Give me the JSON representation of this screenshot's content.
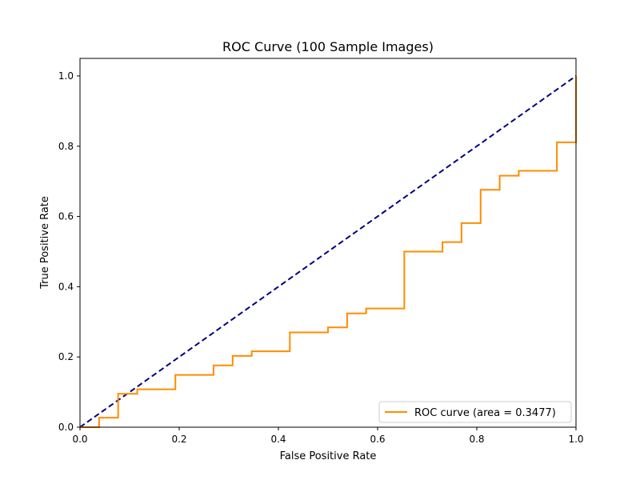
{
  "chart_data": {
    "type": "line",
    "title": "ROC Curve (100 Sample Images)",
    "xlabel": "False Positive Rate",
    "ylabel": "True Positive Rate",
    "xlim": [
      0.0,
      1.0
    ],
    "ylim": [
      0.0,
      1.05
    ],
    "x_ticks": [
      0.0,
      0.2,
      0.4,
      0.6,
      0.8,
      1.0
    ],
    "x_tick_labels": [
      "0.0",
      "0.2",
      "0.4",
      "0.6",
      "0.8",
      "1.0"
    ],
    "y_ticks": [
      0.0,
      0.2,
      0.4,
      0.6,
      0.8,
      1.0
    ],
    "y_tick_labels": [
      "0.0",
      "0.2",
      "0.4",
      "0.6",
      "0.8",
      "1.0"
    ],
    "grid": false,
    "legend_position": "lower-right",
    "series": [
      {
        "name": "ROC curve (area = 0.3477)",
        "color": "#ff8c00",
        "line_style": "solid",
        "x": [
          0.0,
          0.0385,
          0.0385,
          0.0769,
          0.0769,
          0.1154,
          0.1154,
          0.1923,
          0.1923,
          0.2692,
          0.2692,
          0.3077,
          0.3077,
          0.3462,
          0.3462,
          0.4231,
          0.4231,
          0.5,
          0.5,
          0.5385,
          0.5385,
          0.5769,
          0.5769,
          0.6538,
          0.6538,
          0.7308,
          0.7308,
          0.7692,
          0.7692,
          0.8077,
          0.8077,
          0.8462,
          0.8462,
          0.8846,
          0.8846,
          0.9615,
          0.9615,
          1.0,
          1.0
        ],
        "y": [
          0.0,
          0.0,
          0.027,
          0.027,
          0.095,
          0.095,
          0.108,
          0.108,
          0.149,
          0.149,
          0.176,
          0.176,
          0.203,
          0.203,
          0.216,
          0.216,
          0.27,
          0.27,
          0.284,
          0.284,
          0.324,
          0.324,
          0.338,
          0.338,
          0.5,
          0.5,
          0.527,
          0.527,
          0.581,
          0.581,
          0.676,
          0.676,
          0.716,
          0.716,
          0.73,
          0.73,
          0.811,
          0.811,
          1.0
        ]
      },
      {
        "color": "#000080",
        "line_style": "dashed",
        "x": [
          0.0,
          1.0
        ],
        "y": [
          0.0,
          1.0
        ]
      }
    ]
  }
}
